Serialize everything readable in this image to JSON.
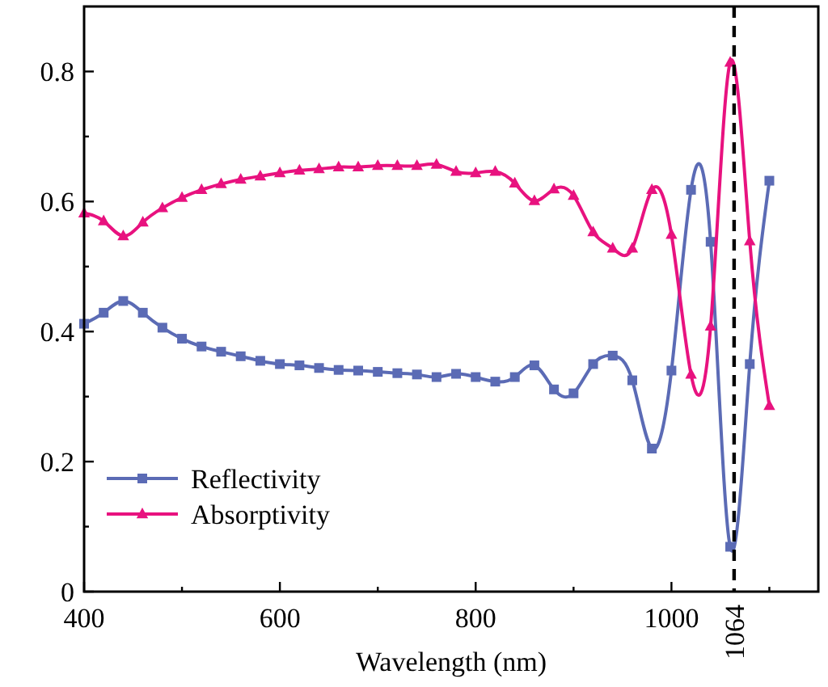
{
  "chart_data": {
    "type": "line",
    "xlabel": "Wavelength (nm)",
    "x": [
      400,
      420,
      440,
      460,
      480,
      500,
      520,
      540,
      560,
      580,
      600,
      620,
      640,
      660,
      680,
      700,
      720,
      740,
      760,
      780,
      800,
      820,
      840,
      860,
      880,
      900,
      920,
      940,
      960,
      980,
      1000,
      1020,
      1040,
      1060,
      1080,
      1100
    ],
    "series": [
      {
        "name": "Reflectivity",
        "color": "#5b6bb5",
        "marker": "square",
        "values": [
          0.412,
          0.429,
          0.447,
          0.429,
          0.406,
          0.389,
          0.377,
          0.369,
          0.362,
          0.355,
          0.35,
          0.348,
          0.344,
          0.341,
          0.34,
          0.338,
          0.336,
          0.334,
          0.33,
          0.335,
          0.33,
          0.323,
          0.33,
          0.348,
          0.311,
          0.305,
          0.35,
          0.363,
          0.325,
          0.22,
          0.34,
          0.618,
          0.538,
          0.069,
          0.35,
          0.632
        ]
      },
      {
        "name": "Absorptivity",
        "color": "#e8127f",
        "marker": "triangle",
        "values": [
          0.582,
          0.57,
          0.547,
          0.568,
          0.59,
          0.606,
          0.618,
          0.627,
          0.634,
          0.639,
          0.644,
          0.648,
          0.65,
          0.653,
          0.653,
          0.655,
          0.655,
          0.655,
          0.657,
          0.646,
          0.644,
          0.646,
          0.628,
          0.601,
          0.619,
          0.609,
          0.553,
          0.528,
          0.528,
          0.618,
          0.549,
          0.334,
          0.408,
          0.814,
          0.539,
          0.286
        ]
      }
    ],
    "xlim": [
      400,
      1150
    ],
    "xticks": [
      400,
      {
        "value": 500,
        "label": null
      },
      600,
      {
        "value": 700,
        "label": null
      },
      800,
      {
        "value": 900,
        "label": null
      },
      1000,
      {
        "value": 1100,
        "label": null
      }
    ],
    "ylim": [
      0,
      0.9
    ],
    "yticks": [
      0,
      {
        "value": 0.1,
        "label": null
      },
      0.2,
      {
        "value": 0.3,
        "label": null
      },
      0.4,
      {
        "value": 0.5,
        "label": null
      },
      0.6,
      {
        "value": 0.7,
        "label": null
      },
      0.8
    ],
    "ref_lines": [
      {
        "axis": "x",
        "value": 1064,
        "label": "1064",
        "color": "#000000",
        "line_style": "dashed"
      }
    ],
    "legend": "bottom left",
    "grid": false
  }
}
